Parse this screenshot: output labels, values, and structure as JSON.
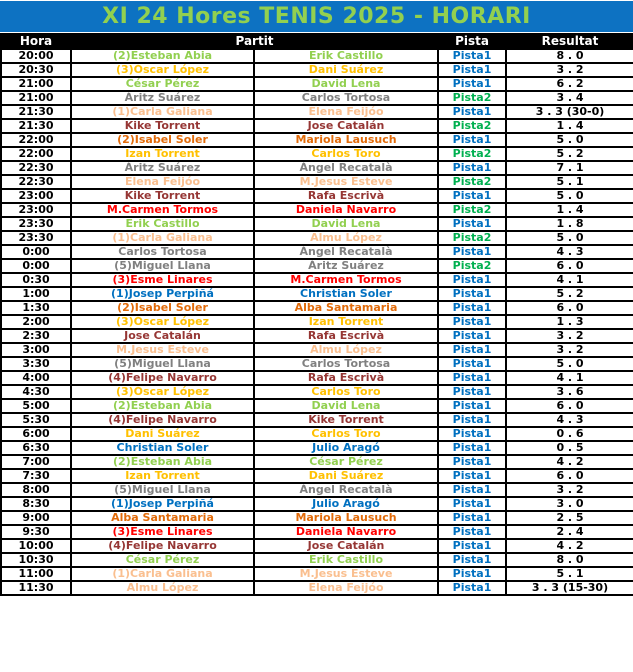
{
  "title": "XI 24 Hores TENIS 2025 - HORARI",
  "colors": {
    "title_bg": "#0d72c2",
    "title_fg": "#92d050",
    "header_bg": "#000000",
    "header_fg": "#ffffff",
    "green": "#92d050",
    "gold": "#ffc000",
    "gray": "#808080",
    "peach": "#fabf8f",
    "maroon": "#963634",
    "red": "#ff0000",
    "orange": "#e26b0a",
    "blue": "#0070c0",
    "pista1": "#0070c0",
    "pista2": "#00b050"
  },
  "table": {
    "headers": {
      "hora": "Hora",
      "partit": "Partit",
      "pista": "Pista",
      "resultat": "Resultat"
    },
    "rows": [
      {
        "hora": "20:00",
        "p1": "(2)Esteban Abia",
        "p2": "Erik Castillo",
        "pista": "Pista1",
        "resultat": "8 . 0",
        "color": "green"
      },
      {
        "hora": "20:30",
        "p1": "(3)Óscar López",
        "p2": "Dani Suárez",
        "pista": "Pista1",
        "resultat": "3 . 2",
        "color": "gold"
      },
      {
        "hora": "21:00",
        "p1": "César Pérez",
        "p2": "David Lena",
        "pista": "Pista1",
        "resultat": "6 . 2",
        "color": "green"
      },
      {
        "hora": "21:00",
        "p1": "Áritz Suárez",
        "p2": "Carlos Tortosa",
        "pista": "Pista2",
        "resultat": "3 . 4",
        "color": "gray"
      },
      {
        "hora": "21:30",
        "p1": "(1)Carla Galiana",
        "p2": "Elena Feijóo",
        "pista": "Pista1",
        "resultat": "3 . 3 (30-0)",
        "color": "peach"
      },
      {
        "hora": "21:30",
        "p1": "Kike Torrent",
        "p2": "Jose Catalán",
        "pista": "Pista2",
        "resultat": "1 . 4",
        "color": "maroon"
      },
      {
        "hora": "22:00",
        "p1": "(2)Isabel Soler",
        "p2": "Mariola Lausuch",
        "pista": "Pista1",
        "resultat": "5 . 0",
        "color": "orange"
      },
      {
        "hora": "22:00",
        "p1": "Izan Torrent",
        "p2": "Carlos Toro",
        "pista": "Pista2",
        "resultat": "5 . 2",
        "color": "gold"
      },
      {
        "hora": "22:30",
        "p1": "Áritz Suárez",
        "p2": "Àngel Recatalà",
        "pista": "Pista1",
        "resultat": "7 . 1",
        "color": "gray"
      },
      {
        "hora": "22:30",
        "p1": "Elena Feijóo",
        "p2": "M.Jesus Esteve",
        "pista": "Pista2",
        "resultat": "5 . 1",
        "color": "peach"
      },
      {
        "hora": "23:00",
        "p1": "Kike Torrent",
        "p2": "Rafa Escrivà",
        "pista": "Pista1",
        "resultat": "5 . 0",
        "color": "maroon"
      },
      {
        "hora": "23:00",
        "p1": "M.Carmen Tormos",
        "p2": "Daniela Navarro",
        "pista": "Pista2",
        "resultat": "1 . 4",
        "color": "red"
      },
      {
        "hora": "23:30",
        "p1": "Erik Castillo",
        "p2": "David Lena",
        "pista": "Pista1",
        "resultat": "1 . 8",
        "color": "green"
      },
      {
        "hora": "23:30",
        "p1": "(1)Carla Galiana",
        "p2": "Almu López",
        "pista": "Pista2",
        "resultat": "5 . 0",
        "color": "peach"
      },
      {
        "hora": "0:00",
        "p1": "Carlos Tortosa",
        "p2": "Àngel Recatalà",
        "pista": "Pista1",
        "resultat": "4 . 3",
        "color": "gray"
      },
      {
        "hora": "0:00",
        "p1": "(5)Miguel Llana",
        "p2": "Áritz Suárez",
        "pista": "Pista2",
        "resultat": "6 . 0",
        "color": "gray"
      },
      {
        "hora": "0:30",
        "p1": "(3)Esme Linares",
        "p2": "M.Carmen Tormos",
        "pista": "Pista1",
        "resultat": "4 . 1",
        "color": "red"
      },
      {
        "hora": "1:00",
        "p1": "(1)Josep Perpiñá",
        "p2": "Christian Soler",
        "pista": "Pista1",
        "resultat": "5 . 2",
        "color": "blue"
      },
      {
        "hora": "1:30",
        "p1": "(2)Isabel Soler",
        "p2": "Alba Santamaria",
        "pista": "Pista1",
        "resultat": "6 . 0",
        "color": "orange"
      },
      {
        "hora": "2:00",
        "p1": "(3)Óscar López",
        "p2": "Izan Torrent",
        "pista": "Pista1",
        "resultat": "1 . 3",
        "color": "gold"
      },
      {
        "hora": "2:30",
        "p1": "Jose Catalán",
        "p2": "Rafa Escrivà",
        "pista": "Pista1",
        "resultat": "3 . 2",
        "color": "maroon"
      },
      {
        "hora": "3:00",
        "p1": "M.Jesus Esteve",
        "p2": "Almu López",
        "pista": "Pista1",
        "resultat": "3 . 2",
        "color": "peach"
      },
      {
        "hora": "3:30",
        "p1": "(5)Miguel Llana",
        "p2": "Carlos Tortosa",
        "pista": "Pista1",
        "resultat": "5 . 0",
        "color": "gray"
      },
      {
        "hora": "4:00",
        "p1": "(4)Felipe Navarro",
        "p2": "Rafa Escrivà",
        "pista": "Pista1",
        "resultat": "4 . 1",
        "color": "maroon"
      },
      {
        "hora": "4:30",
        "p1": "(3)Óscar López",
        "p2": "Carlos Toro",
        "pista": "Pista1",
        "resultat": "3 . 6",
        "color": "gold"
      },
      {
        "hora": "5:00",
        "p1": "(2)Esteban Abia",
        "p2": "David Lena",
        "pista": "Pista1",
        "resultat": "6 . 0",
        "color": "green"
      },
      {
        "hora": "5:30",
        "p1": "(4)Felipe Navarro",
        "p2": "Kike Torrent",
        "pista": "Pista1",
        "resultat": "4 . 3",
        "color": "maroon"
      },
      {
        "hora": "6:00",
        "p1": "Dani Suárez",
        "p2": "Carlos Toro",
        "pista": "Pista1",
        "resultat": "0 . 6",
        "color": "gold"
      },
      {
        "hora": "6:30",
        "p1": "Christian Soler",
        "p2": "Julio Aragó",
        "pista": "Pista1",
        "resultat": "0 . 5",
        "color": "blue"
      },
      {
        "hora": "7:00",
        "p1": "(2)Esteban Abia",
        "p2": "César Pérez",
        "pista": "Pista1",
        "resultat": "4 . 2",
        "color": "green"
      },
      {
        "hora": "7:30",
        "p1": "Izan Torrent",
        "p2": "Dani Suárez",
        "pista": "Pista1",
        "resultat": "6 . 0",
        "color": "gold"
      },
      {
        "hora": "8:00",
        "p1": "(5)Miguel Llana",
        "p2": "Àngel Recatalà",
        "pista": "Pista1",
        "resultat": "3 . 2",
        "color": "gray"
      },
      {
        "hora": "8:30",
        "p1": "(1)Josep Perpiñá",
        "p2": "Julio Aragó",
        "pista": "Pista1",
        "resultat": "3 . 0",
        "color": "blue"
      },
      {
        "hora": "9:00",
        "p1": "Alba Santamaria",
        "p2": "Mariola Lausuch",
        "pista": "Pista1",
        "resultat": "2 . 5",
        "color": "orange"
      },
      {
        "hora": "9:30",
        "p1": "(3)Esme Linares",
        "p2": "Daniela Navarro",
        "pista": "Pista1",
        "resultat": "2 . 4",
        "color": "red"
      },
      {
        "hora": "10:00",
        "p1": "(4)Felipe Navarro",
        "p2": "Jose Catalán",
        "pista": "Pista1",
        "resultat": "4 . 2",
        "color": "maroon"
      },
      {
        "hora": "10:30",
        "p1": "César Pérez",
        "p2": "Erik Castillo",
        "pista": "Pista1",
        "resultat": "8 . 0",
        "color": "green"
      },
      {
        "hora": "11:00",
        "p1": "(1)Carla Galiana",
        "p2": "M.Jesus Esteve",
        "pista": "Pista1",
        "resultat": "5 . 1",
        "color": "peach"
      },
      {
        "hora": "11:30",
        "p1": "Almu López",
        "p2": "Elena Feijóo",
        "pista": "Pista1",
        "resultat": "3 . 3 (15-30)",
        "color": "peach"
      }
    ]
  }
}
